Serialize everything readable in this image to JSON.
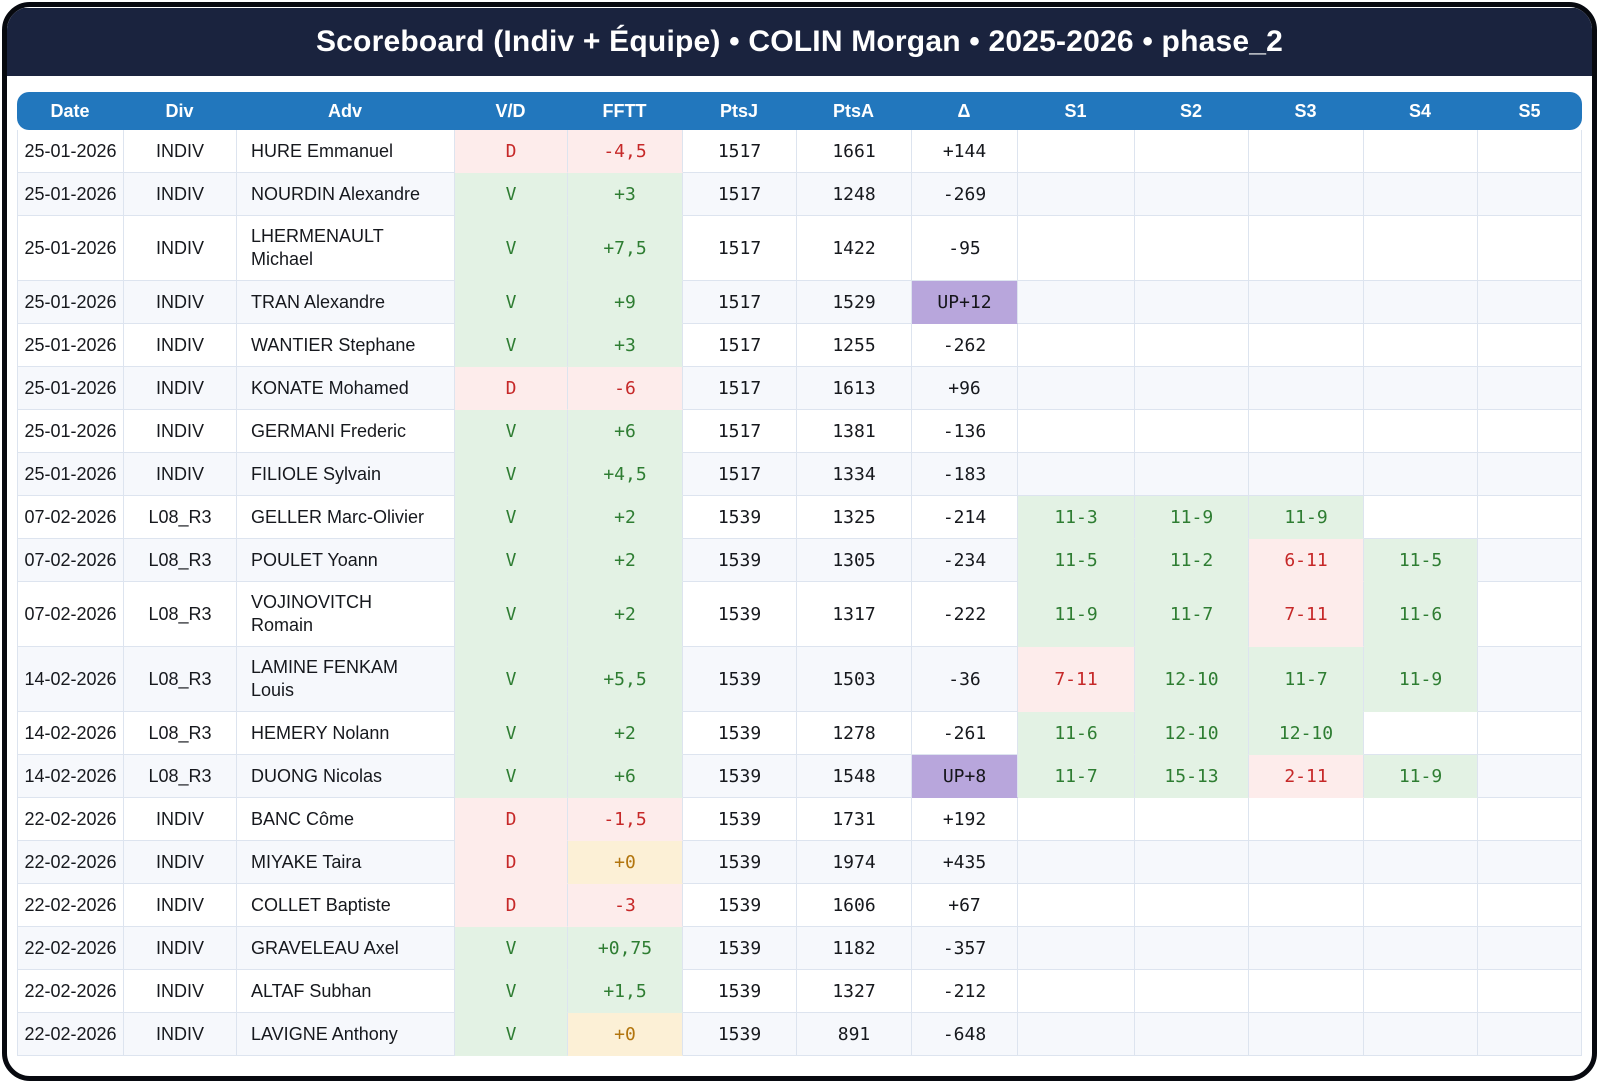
{
  "header": {
    "title": "Scoreboard (Indiv + Équipe) • COLIN Morgan • 2025-2026 • phase_2"
  },
  "colors": {
    "title_bar": "#1a233e",
    "header_row": "#2277bd",
    "win_bg": "#e3f2e4",
    "win_text": "#2e7d32",
    "loss_bg": "#fdeceb",
    "loss_text": "#c62828",
    "zero_bg": "#fcf0d6",
    "zero_text": "#b2750e",
    "up_bg": "#b8a6dc"
  },
  "table": {
    "columns": [
      {
        "key": "date",
        "label": "Date"
      },
      {
        "key": "div",
        "label": "Div"
      },
      {
        "key": "adv",
        "label": "Adv"
      },
      {
        "key": "vd",
        "label": "V/D"
      },
      {
        "key": "fftt",
        "label": "FFTT"
      },
      {
        "key": "ptsj",
        "label": "PtsJ"
      },
      {
        "key": "ptsa",
        "label": "PtsA"
      },
      {
        "key": "delta",
        "label": "Δ"
      },
      {
        "key": "s1",
        "label": "S1"
      },
      {
        "key": "s2",
        "label": "S2"
      },
      {
        "key": "s3",
        "label": "S3"
      },
      {
        "key": "s4",
        "label": "S4"
      },
      {
        "key": "s5",
        "label": "S5"
      }
    ],
    "rows": [
      {
        "date": "25-01-2026",
        "div": "INDIV",
        "adv": "HURE Emmanuel",
        "vd": "D",
        "fftt": "-4,5",
        "ptsj": "1517",
        "ptsa": "1661",
        "delta": "+144",
        "sets": [
          "",
          "",
          "",
          "",
          ""
        ]
      },
      {
        "date": "25-01-2026",
        "div": "INDIV",
        "adv": "NOURDIN Alexandre",
        "vd": "V",
        "fftt": "+3",
        "ptsj": "1517",
        "ptsa": "1248",
        "delta": "-269",
        "sets": [
          "",
          "",
          "",
          "",
          ""
        ]
      },
      {
        "date": "25-01-2026",
        "div": "INDIV",
        "adv": "LHERMENAULT Michael",
        "vd": "V",
        "fftt": "+7,5",
        "ptsj": "1517",
        "ptsa": "1422",
        "delta": "-95",
        "sets": [
          "",
          "",
          "",
          "",
          ""
        ]
      },
      {
        "date": "25-01-2026",
        "div": "INDIV",
        "adv": "TRAN Alexandre",
        "vd": "V",
        "fftt": "+9",
        "ptsj": "1517",
        "ptsa": "1529",
        "delta": "UP+12",
        "sets": [
          "",
          "",
          "",
          "",
          ""
        ]
      },
      {
        "date": "25-01-2026",
        "div": "INDIV",
        "adv": "WANTIER Stephane",
        "vd": "V",
        "fftt": "+3",
        "ptsj": "1517",
        "ptsa": "1255",
        "delta": "-262",
        "sets": [
          "",
          "",
          "",
          "",
          ""
        ]
      },
      {
        "date": "25-01-2026",
        "div": "INDIV",
        "adv": "KONATE Mohamed",
        "vd": "D",
        "fftt": "-6",
        "ptsj": "1517",
        "ptsa": "1613",
        "delta": "+96",
        "sets": [
          "",
          "",
          "",
          "",
          ""
        ]
      },
      {
        "date": "25-01-2026",
        "div": "INDIV",
        "adv": "GERMANI Frederic",
        "vd": "V",
        "fftt": "+6",
        "ptsj": "1517",
        "ptsa": "1381",
        "delta": "-136",
        "sets": [
          "",
          "",
          "",
          "",
          ""
        ]
      },
      {
        "date": "25-01-2026",
        "div": "INDIV",
        "adv": "FILIOLE Sylvain",
        "vd": "V",
        "fftt": "+4,5",
        "ptsj": "1517",
        "ptsa": "1334",
        "delta": "-183",
        "sets": [
          "",
          "",
          "",
          "",
          ""
        ]
      },
      {
        "date": "07-02-2026",
        "div": "L08_R3",
        "adv": "GELLER Marc-Olivier",
        "vd": "V",
        "fftt": "+2",
        "ptsj": "1539",
        "ptsa": "1325",
        "delta": "-214",
        "sets": [
          "11-3",
          "11-9",
          "11-9",
          "",
          ""
        ]
      },
      {
        "date": "07-02-2026",
        "div": "L08_R3",
        "adv": "POULET Yoann",
        "vd": "V",
        "fftt": "+2",
        "ptsj": "1539",
        "ptsa": "1305",
        "delta": "-234",
        "sets": [
          "11-5",
          "11-2",
          "6-11",
          "11-5",
          ""
        ]
      },
      {
        "date": "07-02-2026",
        "div": "L08_R3",
        "adv": "VOJINOVITCH Romain",
        "vd": "V",
        "fftt": "+2",
        "ptsj": "1539",
        "ptsa": "1317",
        "delta": "-222",
        "sets": [
          "11-9",
          "11-7",
          "7-11",
          "11-6",
          ""
        ]
      },
      {
        "date": "14-02-2026",
        "div": "L08_R3",
        "adv": "LAMINE FENKAM Louis",
        "vd": "V",
        "fftt": "+5,5",
        "ptsj": "1539",
        "ptsa": "1503",
        "delta": "-36",
        "sets": [
          "7-11",
          "12-10",
          "11-7",
          "11-9",
          ""
        ]
      },
      {
        "date": "14-02-2026",
        "div": "L08_R3",
        "adv": "HEMERY Nolann",
        "vd": "V",
        "fftt": "+2",
        "ptsj": "1539",
        "ptsa": "1278",
        "delta": "-261",
        "sets": [
          "11-6",
          "12-10",
          "12-10",
          "",
          ""
        ]
      },
      {
        "date": "14-02-2026",
        "div": "L08_R3",
        "adv": "DUONG Nicolas",
        "vd": "V",
        "fftt": "+6",
        "ptsj": "1539",
        "ptsa": "1548",
        "delta": "UP+8",
        "sets": [
          "11-7",
          "15-13",
          "2-11",
          "11-9",
          ""
        ]
      },
      {
        "date": "22-02-2026",
        "div": "INDIV",
        "adv": "BANC Côme",
        "vd": "D",
        "fftt": "-1,5",
        "ptsj": "1539",
        "ptsa": "1731",
        "delta": "+192",
        "sets": [
          "",
          "",
          "",
          "",
          ""
        ]
      },
      {
        "date": "22-02-2026",
        "div": "INDIV",
        "adv": "MIYAKE Taira",
        "vd": "D",
        "fftt": "+0",
        "ptsj": "1539",
        "ptsa": "1974",
        "delta": "+435",
        "sets": [
          "",
          "",
          "",
          "",
          ""
        ]
      },
      {
        "date": "22-02-2026",
        "div": "INDIV",
        "adv": "COLLET Baptiste",
        "vd": "D",
        "fftt": "-3",
        "ptsj": "1539",
        "ptsa": "1606",
        "delta": "+67",
        "sets": [
          "",
          "",
          "",
          "",
          ""
        ]
      },
      {
        "date": "22-02-2026",
        "div": "INDIV",
        "adv": "GRAVELEAU Axel",
        "vd": "V",
        "fftt": "+0,75",
        "ptsj": "1539",
        "ptsa": "1182",
        "delta": "-357",
        "sets": [
          "",
          "",
          "",
          "",
          ""
        ]
      },
      {
        "date": "22-02-2026",
        "div": "INDIV",
        "adv": "ALTAF Subhan",
        "vd": "V",
        "fftt": "+1,5",
        "ptsj": "1539",
        "ptsa": "1327",
        "delta": "-212",
        "sets": [
          "",
          "",
          "",
          "",
          ""
        ]
      },
      {
        "date": "22-02-2026",
        "div": "INDIV",
        "adv": "LAVIGNE Anthony",
        "vd": "V",
        "fftt": "+0",
        "ptsj": "1539",
        "ptsa": "891",
        "delta": "-648",
        "sets": [
          "",
          "",
          "",
          "",
          ""
        ]
      }
    ]
  }
}
